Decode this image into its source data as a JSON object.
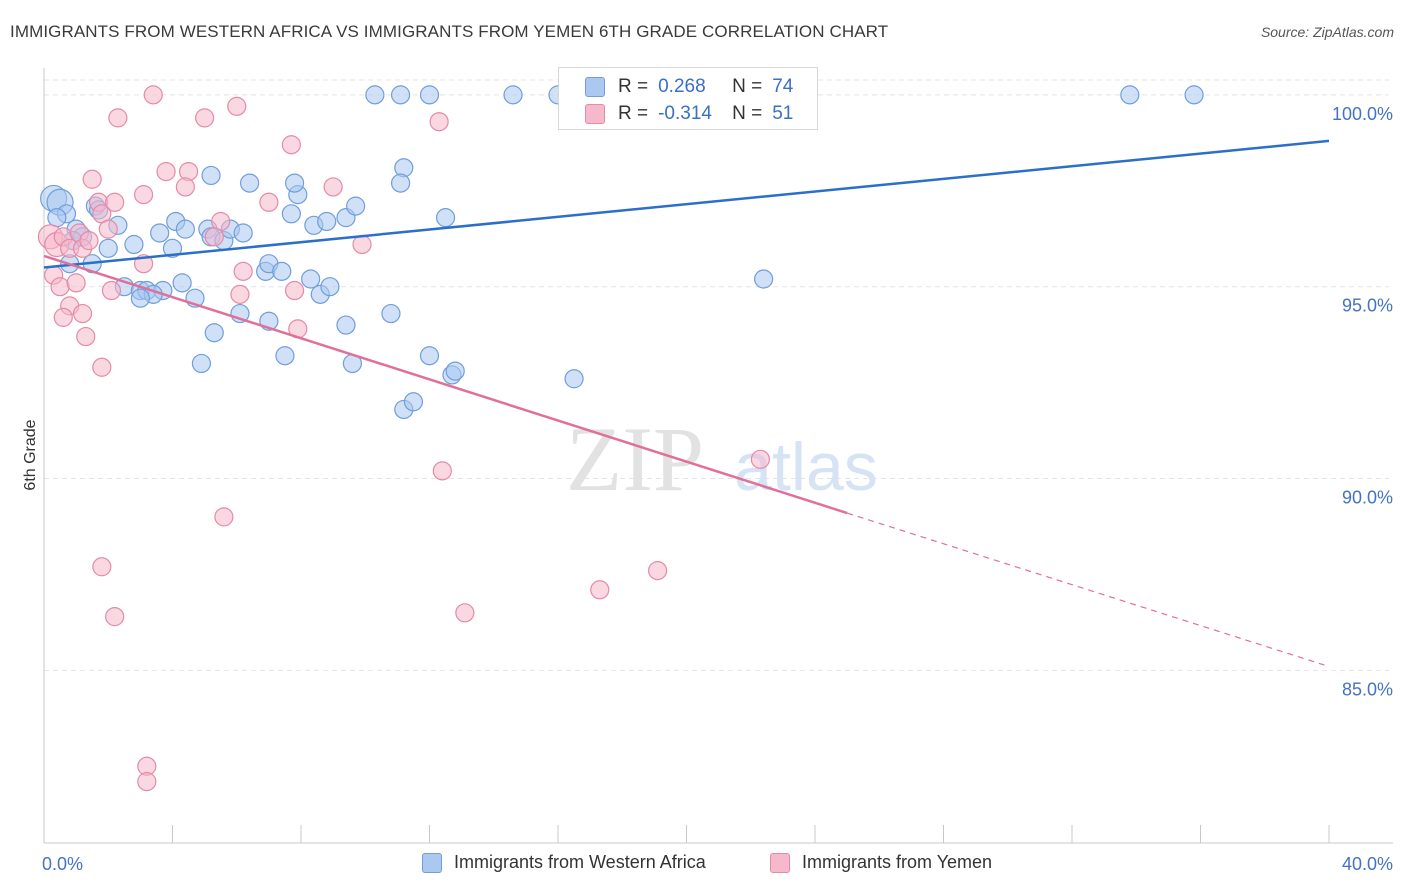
{
  "title": "IMMIGRANTS FROM WESTERN AFRICA VS IMMIGRANTS FROM YEMEN 6TH GRADE CORRELATION CHART",
  "source": "Source: ZipAtlas.com",
  "watermark": {
    "zip": "ZIP",
    "atlas": "atlas"
  },
  "legend_stats": [
    {
      "r_label": "R =",
      "r_value": "0.268",
      "n_label": "N =",
      "n_value": "74"
    },
    {
      "r_label": "R =",
      "r_value": "-0.314",
      "n_label": "N =",
      "n_value": "51"
    }
  ],
  "colors": {
    "blue_fill": "#aac8f0",
    "blue_stroke": "#6f9edb",
    "blue_line": "#2b6fc8",
    "pink_fill": "#f6b8cb",
    "pink_stroke": "#e58aa8",
    "pink_line": "#e0709a",
    "grid": "#e4e4e4",
    "tick_label": "#4472c4"
  },
  "chart_data": {
    "type": "scatter",
    "xlabel": "",
    "ylabel": "6th Grade",
    "xlim": [
      0,
      40
    ],
    "ylim": [
      80.5,
      100.7
    ],
    "x_tick_labels": [
      {
        "value": 0,
        "label": "0.0%"
      },
      {
        "value": 40,
        "label": "40.0%"
      }
    ],
    "y_ticks": [
      {
        "value": 100,
        "label": "100.0%"
      },
      {
        "value": 95,
        "label": "95.0%"
      },
      {
        "value": 90,
        "label": "90.0%"
      },
      {
        "value": 85,
        "label": "85.0%"
      }
    ],
    "grid": true,
    "legend": "bottom",
    "series": [
      {
        "name": "Immigrants from Western Africa",
        "color": "blue",
        "points": [
          [
            0.3,
            97.3
          ],
          [
            0.5,
            97.2
          ],
          [
            0.7,
            96.9
          ],
          [
            0.4,
            96.8
          ],
          [
            1.0,
            96.5
          ],
          [
            1.2,
            96.3
          ],
          [
            0.9,
            96.2
          ],
          [
            1.6,
            97.1
          ],
          [
            1.7,
            97.0
          ],
          [
            2.3,
            96.6
          ],
          [
            2.8,
            96.1
          ],
          [
            2.0,
            96.0
          ],
          [
            1.5,
            95.6
          ],
          [
            3.6,
            96.4
          ],
          [
            4.0,
            96.0
          ],
          [
            4.1,
            96.7
          ],
          [
            4.4,
            96.5
          ],
          [
            5.1,
            96.5
          ],
          [
            5.2,
            96.3
          ],
          [
            5.6,
            96.2
          ],
          [
            5.8,
            96.5
          ],
          [
            6.2,
            96.4
          ],
          [
            6.4,
            97.7
          ],
          [
            6.9,
            95.4
          ],
          [
            7.0,
            95.6
          ],
          [
            7.4,
            95.4
          ],
          [
            7.7,
            96.9
          ],
          [
            7.9,
            97.4
          ],
          [
            7.8,
            97.7
          ],
          [
            8.4,
            96.6
          ],
          [
            8.8,
            96.7
          ],
          [
            9.4,
            96.8
          ],
          [
            9.7,
            97.1
          ],
          [
            11.2,
            98.1
          ],
          [
            11.1,
            97.7
          ],
          [
            12.5,
            96.8
          ],
          [
            2.5,
            95.0
          ],
          [
            3.0,
            94.9
          ],
          [
            3.2,
            94.9
          ],
          [
            3.7,
            94.9
          ],
          [
            3.4,
            94.8
          ],
          [
            3.0,
            94.7
          ],
          [
            4.3,
            95.1
          ],
          [
            4.7,
            94.7
          ],
          [
            5.3,
            93.8
          ],
          [
            6.1,
            94.3
          ],
          [
            7.0,
            94.1
          ],
          [
            4.9,
            93.0
          ],
          [
            7.5,
            93.2
          ],
          [
            8.3,
            95.2
          ],
          [
            8.6,
            94.8
          ],
          [
            8.9,
            95.0
          ],
          [
            9.4,
            94.0
          ],
          [
            9.6,
            93.0
          ],
          [
            10.8,
            94.3
          ],
          [
            11.2,
            91.8
          ],
          [
            11.5,
            92.0
          ],
          [
            12.0,
            93.2
          ],
          [
            12.7,
            92.7
          ],
          [
            12.8,
            92.8
          ],
          [
            16.5,
            92.6
          ],
          [
            22.4,
            95.2
          ],
          [
            5.2,
            97.9
          ],
          [
            10.3,
            100.0
          ],
          [
            11.1,
            100.0
          ],
          [
            12.0,
            100.0
          ],
          [
            14.6,
            100.0
          ],
          [
            16.0,
            100.0
          ],
          [
            16.7,
            100.0
          ],
          [
            17.1,
            100.0
          ],
          [
            20.2,
            100.0
          ],
          [
            33.8,
            100.0
          ],
          [
            35.8,
            100.0
          ],
          [
            0.8,
            95.6
          ]
        ],
        "trend": [
          [
            0,
            95.5
          ],
          [
            40,
            98.8
          ]
        ]
      },
      {
        "name": "Immigrants from Yemen",
        "color": "pink",
        "points": [
          [
            0.2,
            96.3
          ],
          [
            0.4,
            96.1
          ],
          [
            0.6,
            96.3
          ],
          [
            0.8,
            96.0
          ],
          [
            1.1,
            96.4
          ],
          [
            1.2,
            96.0
          ],
          [
            1.4,
            96.2
          ],
          [
            1.5,
            97.8
          ],
          [
            1.7,
            97.2
          ],
          [
            1.8,
            96.9
          ],
          [
            2.0,
            96.5
          ],
          [
            2.2,
            97.2
          ],
          [
            0.3,
            95.3
          ],
          [
            0.5,
            95.0
          ],
          [
            0.8,
            94.5
          ],
          [
            0.6,
            94.2
          ],
          [
            1.0,
            95.1
          ],
          [
            1.2,
            94.3
          ],
          [
            1.3,
            93.7
          ],
          [
            2.1,
            94.9
          ],
          [
            3.1,
            95.6
          ],
          [
            3.1,
            97.4
          ],
          [
            3.8,
            98.0
          ],
          [
            3.4,
            100.0
          ],
          [
            2.3,
            99.4
          ],
          [
            4.5,
            98.0
          ],
          [
            4.4,
            97.6
          ],
          [
            5.0,
            99.4
          ],
          [
            5.5,
            96.7
          ],
          [
            5.3,
            96.3
          ],
          [
            6.0,
            99.7
          ],
          [
            6.2,
            95.4
          ],
          [
            6.1,
            94.8
          ],
          [
            7.0,
            97.2
          ],
          [
            7.7,
            98.7
          ],
          [
            7.8,
            94.9
          ],
          [
            7.9,
            93.9
          ],
          [
            9.0,
            97.6
          ],
          [
            9.9,
            96.1
          ],
          [
            12.3,
            99.3
          ],
          [
            12.4,
            90.2
          ],
          [
            22.3,
            90.5
          ],
          [
            1.8,
            92.9
          ],
          [
            5.6,
            89.0
          ],
          [
            1.8,
            87.7
          ],
          [
            2.2,
            86.4
          ],
          [
            3.2,
            82.5
          ],
          [
            3.2,
            82.1
          ],
          [
            13.1,
            86.5
          ],
          [
            17.3,
            87.1
          ],
          [
            19.1,
            87.6
          ]
        ],
        "trend": [
          [
            0,
            95.8
          ],
          [
            25,
            89.1
          ]
        ],
        "trend_dashed": [
          [
            25,
            89.1
          ],
          [
            40,
            85.1
          ]
        ]
      }
    ]
  }
}
